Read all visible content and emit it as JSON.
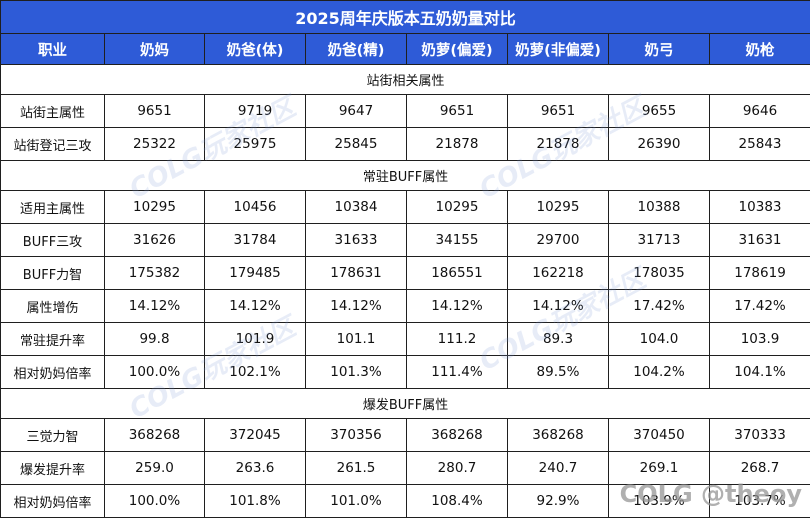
{
  "title": "2025周年庆版本五奶奶量对比",
  "headers": [
    "职业",
    "奶妈",
    "奶爸(体)",
    "奶爸(精)",
    "奶萝(偏爱)",
    "奶萝(非偏爱)",
    "奶弓",
    "奶枪"
  ],
  "sections": [
    {
      "title": "站街相关属性",
      "rows": [
        {
          "label": "站街主属性",
          "values": [
            "9651",
            "9719",
            "9647",
            "9651",
            "9651",
            "9655",
            "9646"
          ]
        },
        {
          "label": "站街登记三攻",
          "values": [
            "25322",
            "25975",
            "25845",
            "21878",
            "21878",
            "26390",
            "25843"
          ]
        }
      ]
    },
    {
      "title": "常驻BUFF属性",
      "rows": [
        {
          "label": "适用主属性",
          "values": [
            "10295",
            "10456",
            "10384",
            "10295",
            "10295",
            "10388",
            "10383"
          ]
        },
        {
          "label": "BUFF三攻",
          "values": [
            "31626",
            "31784",
            "31633",
            "34155",
            "29700",
            "31713",
            "31631"
          ]
        },
        {
          "label": "BUFF力智",
          "values": [
            "175382",
            "179485",
            "178631",
            "186551",
            "162218",
            "178035",
            "178619"
          ]
        },
        {
          "label": "属性增伤",
          "values": [
            "14.12%",
            "14.12%",
            "14.12%",
            "14.12%",
            "14.12%",
            "17.42%",
            "17.42%"
          ]
        },
        {
          "label": "常驻提升率",
          "values": [
            "99.8",
            "101.9",
            "101.1",
            "111.2",
            "89.3",
            "104.0",
            "103.9"
          ]
        },
        {
          "label": "相对奶妈倍率",
          "values": [
            "100.0%",
            "102.1%",
            "101.3%",
            "111.4%",
            "89.5%",
            "104.2%",
            "104.1%"
          ]
        }
      ]
    },
    {
      "title": "爆发BUFF属性",
      "rows": [
        {
          "label": "三觉力智",
          "values": [
            "368268",
            "372045",
            "370356",
            "368268",
            "368268",
            "370450",
            "370333"
          ]
        },
        {
          "label": "爆发提升率",
          "values": [
            "259.0",
            "263.6",
            "261.5",
            "280.7",
            "240.7",
            "269.1",
            "268.7"
          ]
        },
        {
          "label": "相对奶妈倍率",
          "values": [
            "100.0%",
            "101.8%",
            "101.0%",
            "108.4%",
            "92.9%",
            "103.9%",
            "103.7%"
          ]
        }
      ]
    }
  ],
  "watermark": "COLG玩家社区",
  "credit": "COLG @theoy"
}
